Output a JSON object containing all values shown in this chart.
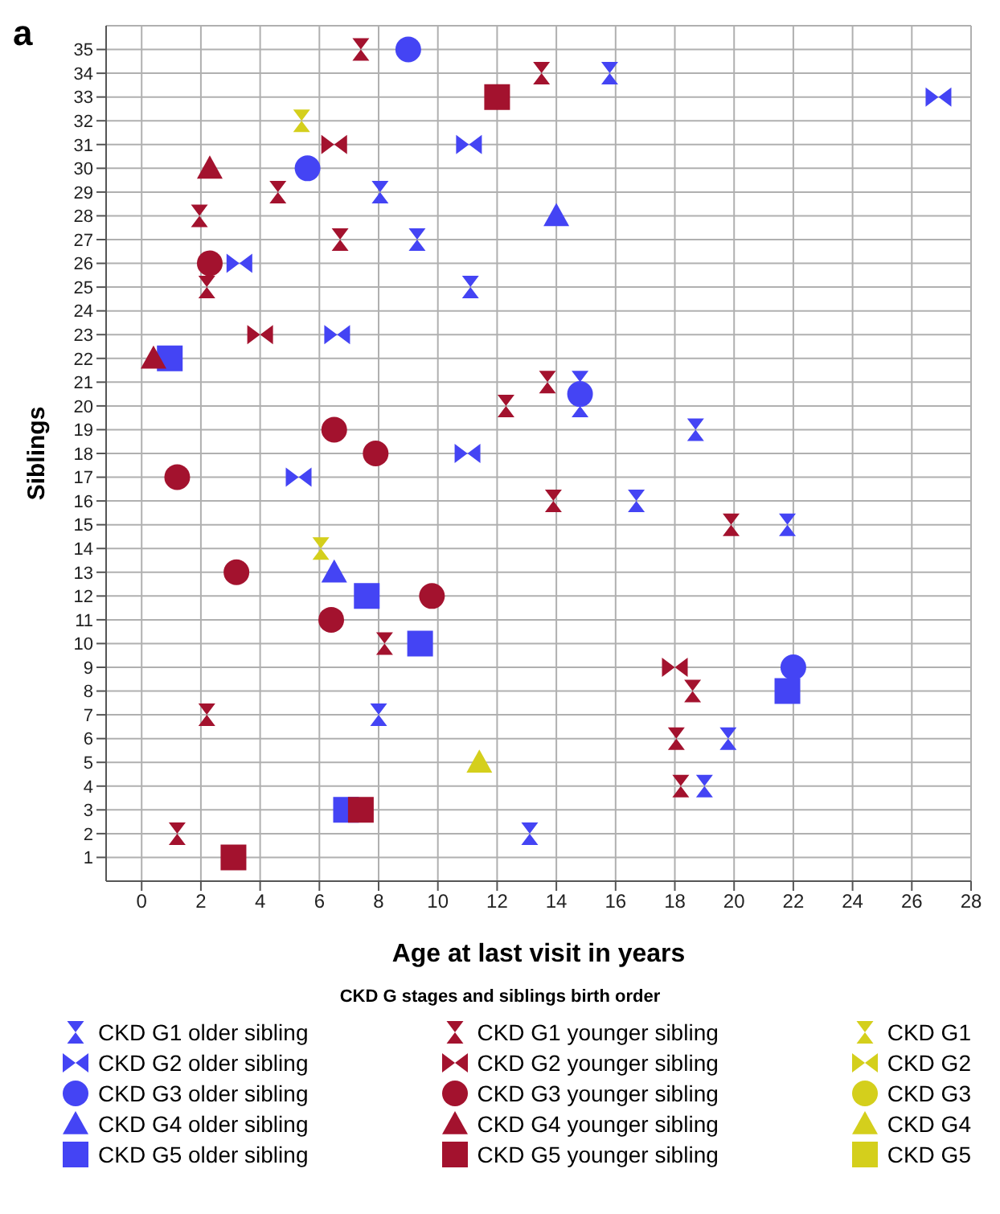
{
  "chart_data": {
    "type": "scatter",
    "title": "a",
    "xlabel": "Age at last visit in years",
    "ylabel": "Siblings",
    "legend_title": "CKD G stages and siblings birth order",
    "legend": "bottom",
    "grid": true,
    "xlim": [
      -1.2,
      28
    ],
    "xticks": [
      0,
      2,
      4,
      6,
      8,
      10,
      12,
      14,
      16,
      18,
      20,
      22,
      24,
      26,
      28
    ],
    "ylim": [
      0,
      36
    ],
    "yticks": [
      1,
      2,
      3,
      4,
      5,
      6,
      7,
      8,
      9,
      10,
      11,
      12,
      13,
      14,
      15,
      16,
      17,
      18,
      19,
      20,
      21,
      22,
      23,
      24,
      25,
      26,
      27,
      28,
      29,
      30,
      31,
      32,
      33,
      34,
      35
    ],
    "series": [
      {
        "name": "CKD G1 older sibling",
        "color": "#4444f4",
        "x": [
          15.8,
          8.05,
          9.3,
          11.1,
          14.8,
          14.8,
          18.7,
          16.7,
          21.8,
          8,
          19.8,
          19,
          13.1
        ],
        "values": [
          34,
          29,
          27,
          25,
          21,
          20,
          19,
          16,
          15,
          7,
          6,
          4,
          2
        ]
      },
      {
        "name": "CKD G2 older sibling",
        "color": "#4444f4",
        "x": [
          26.9,
          11.05,
          3.3,
          6.6,
          5.3,
          11
        ],
        "values": [
          33,
          31,
          26,
          23,
          17,
          18
        ]
      },
      {
        "name": "CKD G3 older sibling",
        "color": "#4444f4",
        "marker": "circle",
        "x": [
          9,
          5.6,
          14.8,
          22
        ],
        "values": [
          35,
          30,
          20.5,
          9
        ]
      },
      {
        "name": "CKD G4 older sibling",
        "color": "#4444f4",
        "marker": "triangle",
        "x": [
          14,
          6.5
        ],
        "values": [
          28,
          13
        ]
      },
      {
        "name": "CKD G5 older sibling",
        "color": "#4444f4",
        "marker": "square",
        "x": [
          0.95,
          7.6,
          9.4,
          21.8,
          6.9
        ],
        "values": [
          22,
          12,
          10,
          8,
          3
        ]
      },
      {
        "name": "CKD G1 younger sibling",
        "color": "#a3122e",
        "x": [
          7.4,
          13.5,
          4.6,
          1.95,
          6.7,
          2.2,
          13.7,
          12.3,
          13.9,
          19.9,
          8.2,
          18.6,
          2.2,
          18.05,
          18.2,
          1.2
        ],
        "values": [
          35,
          34,
          29,
          28,
          27,
          25,
          21,
          20,
          16,
          15,
          10,
          8,
          7,
          6,
          4,
          2
        ]
      },
      {
        "name": "CKD G2 younger sibling",
        "color": "#a3122e",
        "x": [
          6.5,
          4,
          18
        ],
        "values": [
          31,
          23,
          9
        ]
      },
      {
        "name": "CKD G3 younger sibling",
        "color": "#a3122e",
        "marker": "circle",
        "x": [
          2.3,
          6.5,
          7.9,
          1.2,
          3.2,
          9.8,
          6.4
        ],
        "values": [
          26,
          19,
          18,
          17,
          13,
          12,
          11
        ]
      },
      {
        "name": "CKD G4 younger sibling",
        "color": "#a3122e",
        "marker": "triangle",
        "x": [
          2.3,
          0.4
        ],
        "values": [
          30,
          22
        ]
      },
      {
        "name": "CKD G5 younger sibling",
        "color": "#a3122e",
        "marker": "square",
        "x": [
          12,
          7.4,
          3.1
        ],
        "values": [
          33,
          3,
          1
        ]
      },
      {
        "name": "CKD G1",
        "color": "#d4cf1c",
        "x": [
          5.4,
          6.05
        ],
        "values": [
          32,
          14
        ]
      },
      {
        "name": "CKD G2",
        "color": "#d4cf1c"
      },
      {
        "name": "CKD G3",
        "color": "#d4cf1c",
        "marker": "circle"
      },
      {
        "name": "CKD G4",
        "color": "#d4cf1c",
        "marker": "triangle",
        "x": [
          11.4
        ],
        "values": [
          5
        ]
      },
      {
        "name": "CKD G5",
        "color": "#d4cf1c",
        "marker": "square"
      }
    ]
  }
}
